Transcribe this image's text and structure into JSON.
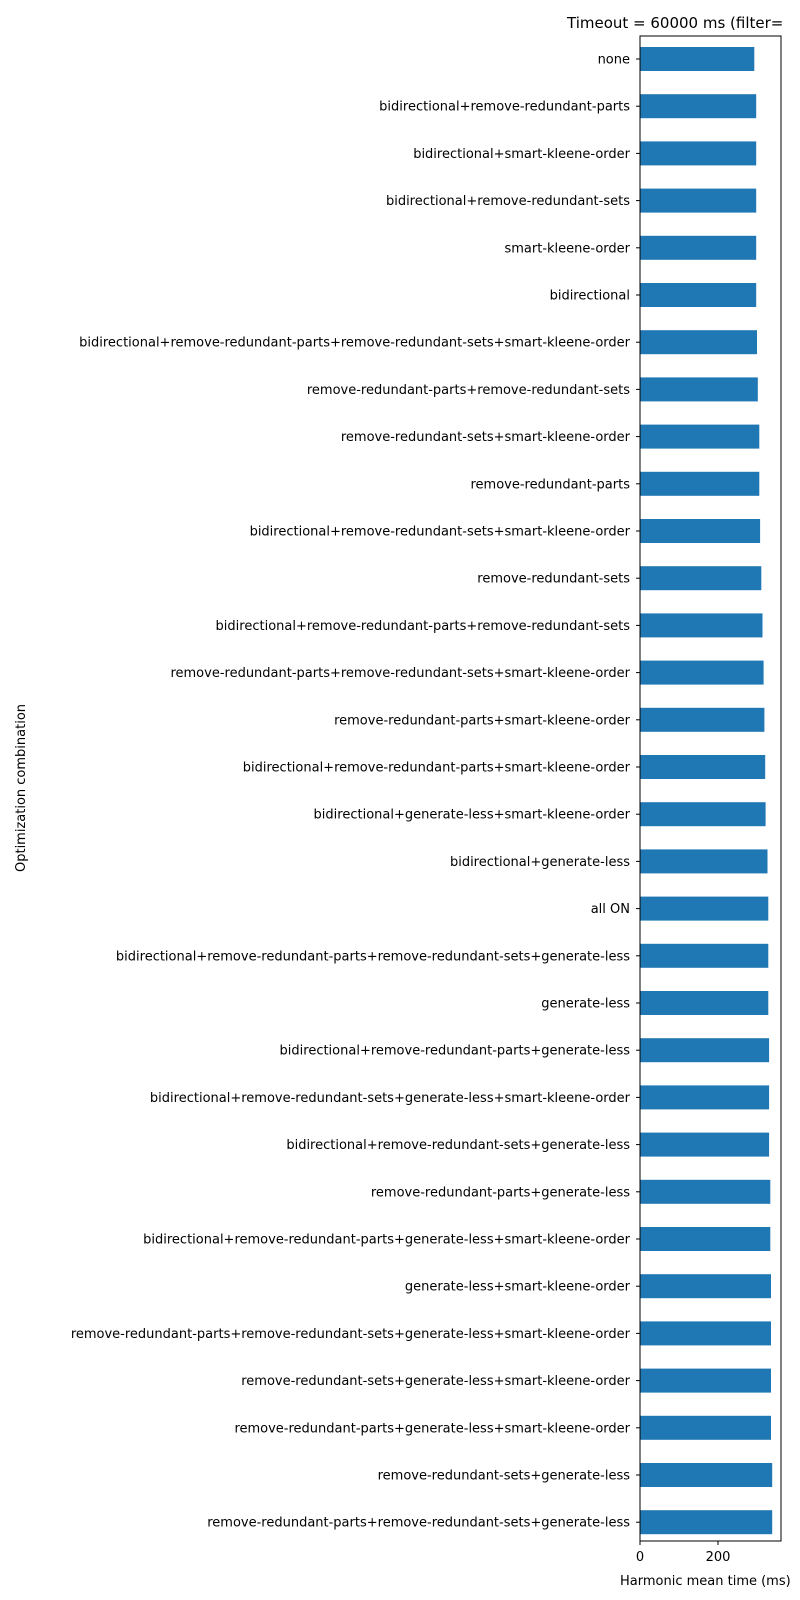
{
  "chart_data": {
    "type": "bar",
    "orientation": "horizontal",
    "title": "Timeout = 60000 ms (filter=",
    "xlabel": "Harmonic mean time (ms)",
    "ylabel": "Optimization combination",
    "xlim": [
      0,
      350
    ],
    "xticks": [
      0,
      200
    ],
    "grid": false,
    "bar_color": "#1f77b4",
    "categories": [
      "none",
      "bidirectional+remove-redundant-parts",
      "bidirectional+smart-kleene-order",
      "bidirectional+remove-redundant-sets",
      "smart-kleene-order",
      "bidirectional",
      "bidirectional+remove-redundant-parts+remove-redundant-sets+smart-kleene-order",
      "remove-redundant-parts+remove-redundant-sets",
      "remove-redundant-sets+smart-kleene-order",
      "remove-redundant-parts",
      "bidirectional+remove-redundant-sets+smart-kleene-order",
      "remove-redundant-sets",
      "bidirectional+remove-redundant-parts+remove-redundant-sets",
      "remove-redundant-parts+remove-redundant-sets+smart-kleene-order",
      "remove-redundant-parts+smart-kleene-order",
      "bidirectional+remove-redundant-parts+smart-kleene-order",
      "bidirectional+generate-less+smart-kleene-order",
      "bidirectional+generate-less",
      "all ON",
      "bidirectional+remove-redundant-parts+remove-redundant-sets+generate-less",
      "generate-less",
      "bidirectional+remove-redundant-parts+generate-less",
      "bidirectional+remove-redundant-sets+generate-less+smart-kleene-order",
      "bidirectional+remove-redundant-sets+generate-less",
      "remove-redundant-parts+generate-less",
      "bidirectional+remove-redundant-parts+generate-less+smart-kleene-order",
      "generate-less+smart-kleene-order",
      "remove-redundant-parts+remove-redundant-sets+generate-less+smart-kleene-order",
      "remove-redundant-sets+generate-less+smart-kleene-order",
      "remove-redundant-parts+generate-less+smart-kleene-order",
      "remove-redundant-sets+generate-less",
      "remove-redundant-parts+remove-redundant-sets+generate-less"
    ],
    "values": [
      293,
      298,
      298,
      298,
      298,
      298,
      300,
      302,
      306,
      306,
      308,
      311,
      314,
      317,
      319,
      321,
      322,
      327,
      329,
      329,
      329,
      331,
      331,
      331,
      334,
      334,
      336,
      336,
      336,
      336,
      339,
      339
    ]
  }
}
